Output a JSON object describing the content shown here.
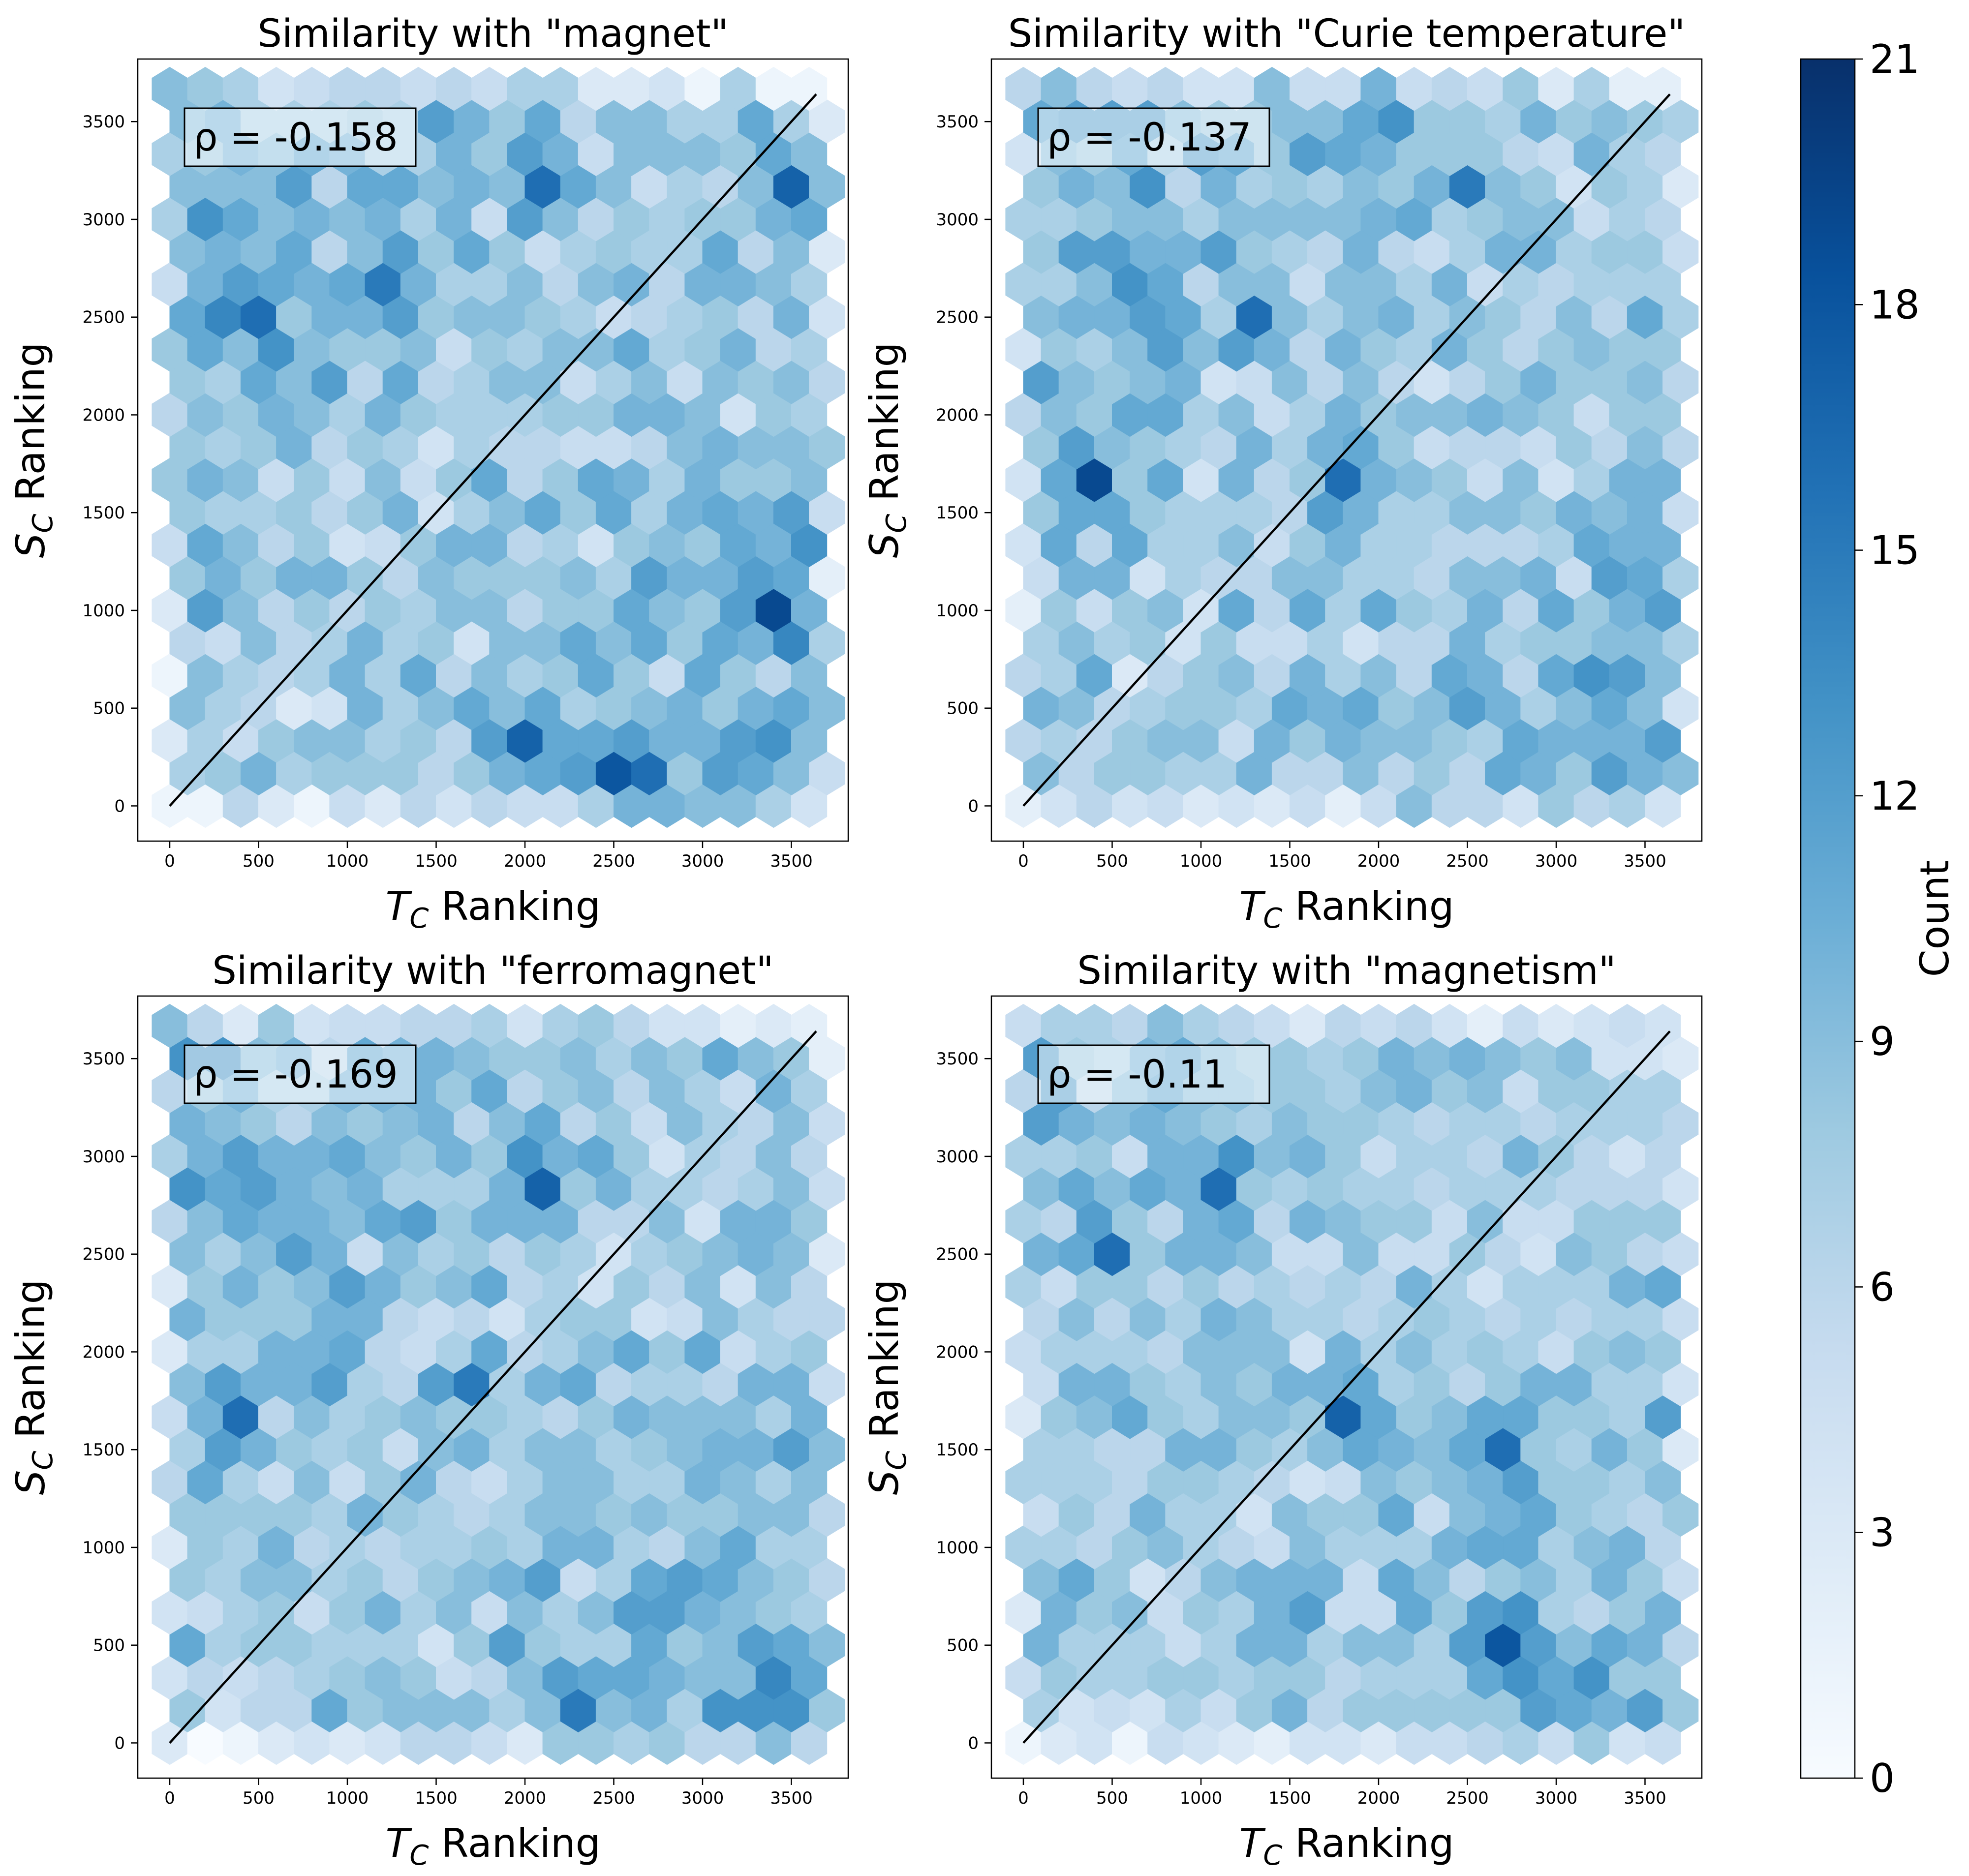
{
  "chart_data": [
    {
      "type": "hexbin",
      "title": "Similarity with \"magnet\"",
      "xlabel_symbol": "T",
      "xlabel_sub": "C",
      "xlabel_rest": " Ranking",
      "ylabel_symbol": "S",
      "ylabel_sub": "C",
      "ylabel_rest": " Ranking",
      "rho_label": "ρ = -0.158",
      "rho": -0.158,
      "xlim": [
        -180,
        3820
      ],
      "ylim": [
        -180,
        3820
      ],
      "xticks": [
        0,
        500,
        1000,
        1500,
        2000,
        2500,
        3000,
        3500
      ],
      "yticks": [
        0,
        500,
        1000,
        1500,
        2000,
        2500,
        3000,
        3500
      ],
      "diagonal": [
        [
          0,
          0
        ],
        [
          3640,
          3640
        ]
      ],
      "seed": 11,
      "hotspots": [
        {
          "x": 2450,
          "y": 170,
          "c": 18
        },
        {
          "x": 3350,
          "y": 1000,
          "c": 19
        },
        {
          "x": 3500,
          "y": 3170,
          "c": 17
        },
        {
          "x": 2000,
          "y": 330,
          "c": 17
        },
        {
          "x": 3230,
          "y": 170,
          "c": 17
        },
        {
          "x": 450,
          "y": 2500,
          "c": 16
        },
        {
          "x": 2080,
          "y": 3170,
          "c": 16
        },
        {
          "x": 3440,
          "y": 1500,
          "c": 16
        },
        {
          "x": 1220,
          "y": 2660,
          "c": 15
        },
        {
          "x": 2650,
          "y": 170,
          "c": 16
        }
      ]
    },
    {
      "type": "hexbin",
      "title": "Similarity with \"Curie temperature\"",
      "xlabel_symbol": "T",
      "xlabel_sub": "C",
      "xlabel_rest": " Ranking",
      "ylabel_symbol": "S",
      "ylabel_sub": "C",
      "ylabel_rest": " Ranking",
      "rho_label": "ρ = -0.137",
      "rho": -0.137,
      "xlim": [
        -180,
        3820
      ],
      "ylim": [
        -180,
        3820
      ],
      "xticks": [
        0,
        500,
        1000,
        1500,
        2000,
        2500,
        3000,
        3500
      ],
      "yticks": [
        0,
        500,
        1000,
        1500,
        2000,
        2500,
        3000,
        3500
      ],
      "diagonal": [
        [
          0,
          0
        ],
        [
          3640,
          3640
        ]
      ],
      "seed": 23,
      "hotspots": [
        {
          "x": 350,
          "y": 1660,
          "c": 19
        },
        {
          "x": 800,
          "y": 2170,
          "c": 17
        },
        {
          "x": 2000,
          "y": 3500,
          "c": 17
        },
        {
          "x": 3310,
          "y": 330,
          "c": 17
        },
        {
          "x": 1350,
          "y": 2500,
          "c": 16
        },
        {
          "x": 3370,
          "y": 1170,
          "c": 16
        },
        {
          "x": 1800,
          "y": 1660,
          "c": 16
        },
        {
          "x": 700,
          "y": 2660,
          "c": 16
        },
        {
          "x": 2450,
          "y": 3170,
          "c": 15
        }
      ]
    },
    {
      "type": "hexbin",
      "title": "Similarity with \"ferromagnet\"",
      "xlabel_symbol": "T",
      "xlabel_sub": "C",
      "xlabel_rest": " Ranking",
      "ylabel_symbol": "S",
      "ylabel_sub": "C",
      "ylabel_rest": " Ranking",
      "rho_label": "ρ = -0.169",
      "rho": -0.169,
      "xlim": [
        -180,
        3820
      ],
      "ylim": [
        -180,
        3820
      ],
      "xticks": [
        0,
        500,
        1000,
        1500,
        2000,
        2500,
        3000,
        3500
      ],
      "yticks": [
        0,
        500,
        1000,
        1500,
        2000,
        2500,
        3000,
        3500
      ],
      "diagonal": [
        [
          0,
          0
        ],
        [
          3640,
          3640
        ]
      ],
      "seed": 37,
      "hotspots": [
        {
          "x": 900,
          "y": 2000,
          "c": 17
        },
        {
          "x": 2080,
          "y": 2830,
          "c": 17
        },
        {
          "x": 350,
          "y": 1660,
          "c": 16
        },
        {
          "x": 2900,
          "y": 660,
          "c": 17
        },
        {
          "x": 3500,
          "y": 330,
          "c": 16
        },
        {
          "x": 1700,
          "y": 1830,
          "c": 15
        },
        {
          "x": 2280,
          "y": 170,
          "c": 15
        }
      ]
    },
    {
      "type": "hexbin",
      "title": "Similarity with \"magnetism\"",
      "xlabel_symbol": "T",
      "xlabel_sub": "C",
      "xlabel_rest": " Ranking",
      "ylabel_symbol": "S",
      "ylabel_sub": "C",
      "ylabel_rest": " Ranking",
      "rho_label": "ρ = -0.11",
      "rho": -0.11,
      "xlim": [
        -180,
        3820
      ],
      "ylim": [
        -180,
        3820
      ],
      "xticks": [
        0,
        500,
        1000,
        1500,
        2000,
        2500,
        3000,
        3500
      ],
      "yticks": [
        0,
        500,
        1000,
        1500,
        2000,
        2500,
        3000,
        3500
      ],
      "diagonal": [
        [
          0,
          0
        ],
        [
          3640,
          3640
        ]
      ],
      "seed": 53,
      "hotspots": [
        {
          "x": 2800,
          "y": 500,
          "c": 21
        },
        {
          "x": 2650,
          "y": 500,
          "c": 18
        },
        {
          "x": 1800,
          "y": 1660,
          "c": 17
        },
        {
          "x": 1150,
          "y": 2830,
          "c": 16
        },
        {
          "x": 450,
          "y": 2500,
          "c": 16
        },
        {
          "x": 2650,
          "y": 1500,
          "c": 16
        },
        {
          "x": 3170,
          "y": 170,
          "c": 16
        },
        {
          "x": 2800,
          "y": 1170,
          "c": 15
        }
      ]
    }
  ],
  "colorbar": {
    "label": "Count",
    "min": 0,
    "max": 21,
    "ticks": [
      "0",
      "3",
      "6",
      "9",
      "12",
      "15",
      "18",
      "21"
    ],
    "colormap": "Blues",
    "colors": [
      "#f7fbff",
      "#deebf7",
      "#c6dbef",
      "#9ecae1",
      "#6baed6",
      "#4292c6",
      "#2171b5",
      "#08519c",
      "#08306b"
    ]
  }
}
